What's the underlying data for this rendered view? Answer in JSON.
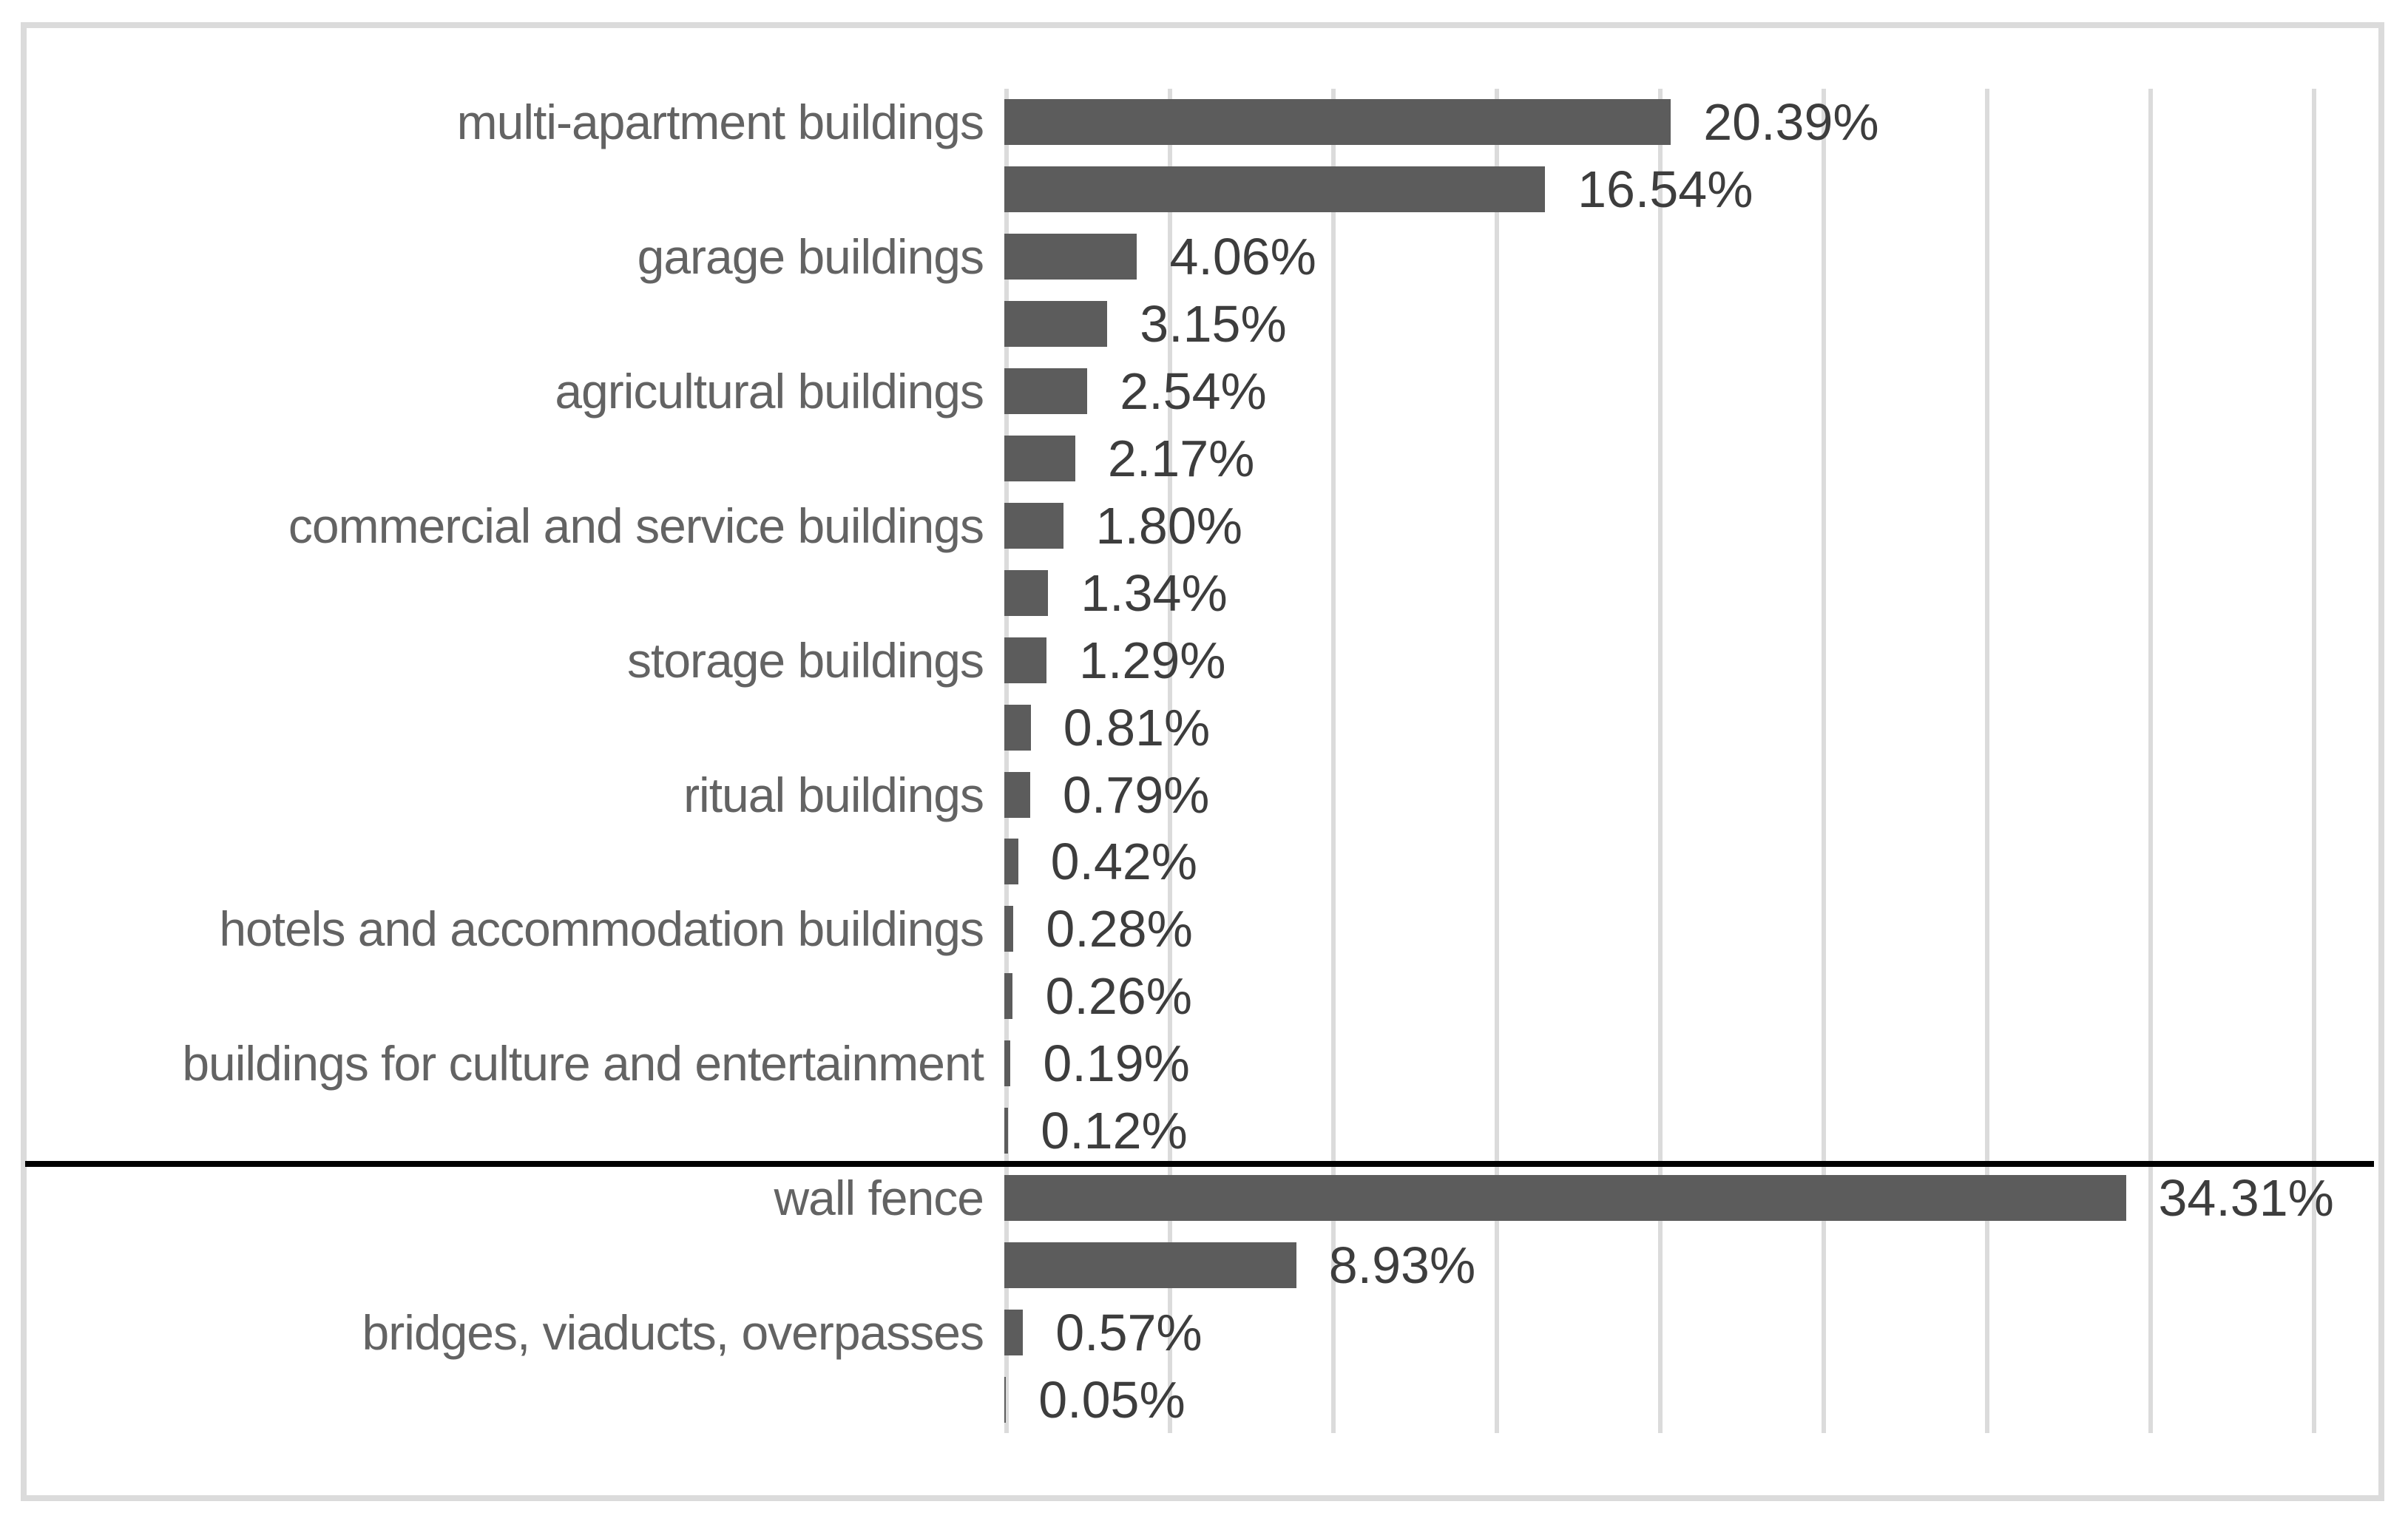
{
  "chart_data": {
    "type": "bar",
    "orientation": "horizontal",
    "title": "",
    "value_unit": "%",
    "axis": {
      "min": 0,
      "max": 40,
      "gridline_step": 5,
      "gridlines_visible": true,
      "tick_labels_visible": false,
      "gridline_positions_percent": [
        0,
        5,
        10,
        15,
        20,
        25,
        30,
        35,
        40
      ]
    },
    "legend_visible": false,
    "data_labels_visible": true,
    "separator_after_row": 16,
    "rows": [
      {
        "label": "multi-apartment buildings",
        "value": 20.39,
        "display": "20.39%"
      },
      {
        "label": "",
        "value": 16.54,
        "display": "16.54%"
      },
      {
        "label": "garage buildings",
        "value": 4.06,
        "display": "4.06%"
      },
      {
        "label": "",
        "value": 3.15,
        "display": "3.15%"
      },
      {
        "label": "agricultural buildings",
        "value": 2.54,
        "display": "2.54%"
      },
      {
        "label": "",
        "value": 2.17,
        "display": "2.17%"
      },
      {
        "label": "commercial and service buildings",
        "value": 1.8,
        "display": "1.80%"
      },
      {
        "label": "",
        "value": 1.34,
        "display": "1.34%"
      },
      {
        "label": "storage buildings",
        "value": 1.29,
        "display": "1.29%"
      },
      {
        "label": "",
        "value": 0.81,
        "display": "0.81%"
      },
      {
        "label": "ritual buildings",
        "value": 0.79,
        "display": "0.79%"
      },
      {
        "label": "",
        "value": 0.42,
        "display": "0.42%"
      },
      {
        "label": "hotels and accommodation buildings",
        "value": 0.28,
        "display": "0.28%"
      },
      {
        "label": "",
        "value": 0.26,
        "display": "0.26%"
      },
      {
        "label": "buildings for culture and entertainment",
        "value": 0.19,
        "display": "0.19%"
      },
      {
        "label": "",
        "value": 0.12,
        "display": "0.12%"
      },
      {
        "label": "wall fence",
        "value": 34.31,
        "display": "34.31%"
      },
      {
        "label": "",
        "value": 8.93,
        "display": "8.93%"
      },
      {
        "label": "bridges, viaducts, overpasses",
        "value": 0.57,
        "display": "0.57%"
      },
      {
        "label": "",
        "value": 0.05,
        "display": "0.05%"
      }
    ],
    "colors": {
      "bar": "#5C5C5C",
      "gridline": "#DBDBDB",
      "frame_border": "#DBDBDB",
      "category_text": "#636363",
      "value_text": "#3D3D3D",
      "separator": "#000000",
      "background": "#FFFFFF"
    }
  }
}
